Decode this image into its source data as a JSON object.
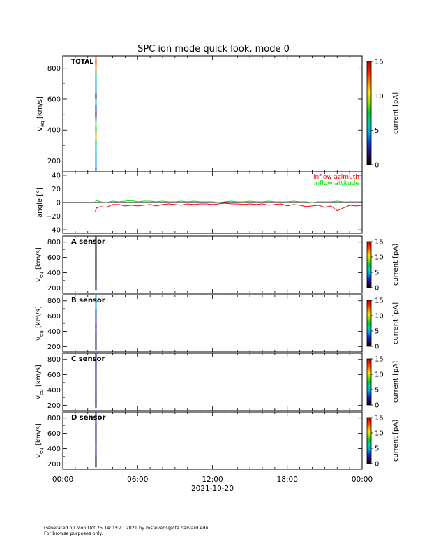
{
  "title": "SPC ion mode quick look, mode 0",
  "footer": {
    "line1": "Generated on Mon Oct 25 14:03:21 2021 by mstevens@cfa.harvard.edu",
    "line2": "For browse purposes only."
  },
  "x_axis": {
    "tick_labels": [
      "00:00",
      "06:00",
      "12:00",
      "18:00",
      "00:00"
    ],
    "tick_hours": [
      0,
      6,
      12,
      18,
      24
    ],
    "date_label": "2021-10-20",
    "range_hours": [
      0,
      24
    ]
  },
  "colorbar": {
    "label": "current [pA]",
    "range": [
      0,
      15
    ],
    "tick_values": [
      0,
      5,
      10,
      15
    ],
    "tick_labels": [
      "0",
      "5",
      "10",
      "15"
    ],
    "colors": [
      "#000000",
      "#2a0a5c",
      "#1030c8",
      "#00a0e0",
      "#00d0a0",
      "#00c840",
      "#90e000",
      "#ffe000",
      "#ff8000",
      "#ff2000",
      "#c00000"
    ]
  },
  "chart_data": [
    {
      "type": "heatmap",
      "panel": "total",
      "label": "TOTAL",
      "ylabel": "v",
      "ylabel_sub": "eq",
      "ylabel_unit": " [km/s]",
      "ylim": [
        130,
        880
      ],
      "yticks": [
        200,
        400,
        600,
        800
      ],
      "ytick_labels": [
        "200",
        "400",
        "600",
        "800"
      ],
      "data_hours": [
        2.6,
        2.7
      ],
      "profile": [
        {
          "v": 870,
          "c": 12
        },
        {
          "v": 840,
          "c": 13
        },
        {
          "v": 800,
          "c": 12
        },
        {
          "v": 770,
          "c": 6
        },
        {
          "v": 740,
          "c": 7
        },
        {
          "v": 700,
          "c": 4
        },
        {
          "v": 660,
          "c": 5
        },
        {
          "v": 620,
          "c": 2
        },
        {
          "v": 580,
          "c": 6
        },
        {
          "v": 540,
          "c": 3
        },
        {
          "v": 500,
          "c": 1.5
        },
        {
          "v": 470,
          "c": 4
        },
        {
          "v": 440,
          "c": 9
        },
        {
          "v": 410,
          "c": 8
        },
        {
          "v": 380,
          "c": 12
        },
        {
          "v": 350,
          "c": 9
        },
        {
          "v": 320,
          "c": 7
        },
        {
          "v": 290,
          "c": 6
        },
        {
          "v": 260,
          "c": 5
        },
        {
          "v": 230,
          "c": 5
        },
        {
          "v": 200,
          "c": 5
        },
        {
          "v": 170,
          "c": 4
        },
        {
          "v": 150,
          "c": 3
        }
      ]
    },
    {
      "type": "line",
      "panel": "angle",
      "ylabel": "angle [°]",
      "ylim": [
        -45,
        45
      ],
      "yticks": [
        -40,
        -20,
        0,
        20,
        40
      ],
      "ytick_labels": [
        "−40",
        "−20",
        "0",
        "20",
        "40"
      ],
      "zero_line": true,
      "x_hours": [
        2.6,
        2.7,
        3.0,
        3.5,
        4.0,
        4.5,
        5.0,
        5.5,
        6.0,
        6.5,
        7.0,
        7.5,
        8.0,
        8.5,
        9.0,
        9.5,
        10.0,
        10.5,
        11.0,
        11.5,
        12.0,
        12.5,
        13.0,
        13.5,
        14.0,
        14.5,
        15.0,
        15.5,
        16.0,
        16.5,
        17.0,
        17.5,
        18.0,
        18.5,
        19.0,
        19.5,
        20.0,
        20.5,
        21.0,
        21.5,
        22.0,
        22.5,
        23.0,
        23.5,
        24.0
      ],
      "series": [
        {
          "name": "inflow azimuth",
          "color": "#ff0000",
          "values": [
            -13,
            -8,
            -6,
            -7,
            -3,
            -3,
            -5,
            -4,
            -5,
            -4,
            -3,
            -5,
            -3,
            -2,
            -3,
            -4,
            -2,
            -3,
            -2,
            -2,
            -3,
            -2,
            -1,
            -2,
            -2,
            -3,
            -2,
            -3,
            -2,
            -4,
            -3,
            -2,
            -5,
            -3,
            -4,
            -6,
            -5,
            -4,
            -7,
            -5,
            -12,
            -8,
            -4,
            -5,
            -4
          ]
        },
        {
          "name": "inflow attitude",
          "color": "#00dd00",
          "values": [
            1,
            3,
            1,
            0,
            2,
            1,
            2,
            3,
            1,
            2,
            2,
            1,
            2,
            1,
            1,
            2,
            1,
            2,
            1,
            1,
            1,
            0,
            1,
            2,
            1,
            1,
            2,
            1,
            1,
            2,
            1,
            1,
            1,
            2,
            1,
            1,
            0,
            1,
            1,
            1,
            2,
            1,
            1,
            1,
            1
          ]
        }
      ]
    },
    {
      "type": "heatmap",
      "panel": "a",
      "label": "A sensor",
      "ylabel": "v",
      "ylabel_sub": "eq",
      "ylabel_unit": " [km/s]",
      "ylim": [
        130,
        880
      ],
      "yticks": [
        200,
        400,
        600,
        800
      ],
      "ytick_labels": [
        "200",
        "400",
        "600",
        "800"
      ],
      "data_hours": [
        2.6,
        2.7
      ],
      "profile": [
        {
          "v": 860,
          "c": 0.5
        },
        {
          "v": 800,
          "c": 0.3
        },
        {
          "v": 740,
          "c": 0.4
        },
        {
          "v": 680,
          "c": 0.3
        },
        {
          "v": 620,
          "c": 0.3
        },
        {
          "v": 560,
          "c": 0.4
        },
        {
          "v": 500,
          "c": 0.3
        },
        {
          "v": 440,
          "c": 0.3
        },
        {
          "v": 380,
          "c": 0.4
        },
        {
          "v": 320,
          "c": 0.5
        },
        {
          "v": 260,
          "c": 0.8
        },
        {
          "v": 220,
          "c": 1.5
        },
        {
          "v": 180,
          "c": 2
        }
      ]
    },
    {
      "type": "heatmap",
      "panel": "b",
      "label": "B sensor",
      "ylabel": "v",
      "ylabel_sub": "eq",
      "ylabel_unit": " [km/s]",
      "ylim": [
        130,
        880
      ],
      "yticks": [
        200,
        400,
        600,
        800
      ],
      "ytick_labels": [
        "200",
        "400",
        "600",
        "800"
      ],
      "data_hours": [
        2.6,
        2.7
      ],
      "profile": [
        {
          "v": 860,
          "c": 5
        },
        {
          "v": 810,
          "c": 4
        },
        {
          "v": 760,
          "c": 5
        },
        {
          "v": 710,
          "c": 4
        },
        {
          "v": 660,
          "c": 3
        },
        {
          "v": 610,
          "c": 3.5
        },
        {
          "v": 560,
          "c": 2.5
        },
        {
          "v": 510,
          "c": 3
        },
        {
          "v": 460,
          "c": 2
        },
        {
          "v": 410,
          "c": 3
        },
        {
          "v": 360,
          "c": 2
        },
        {
          "v": 310,
          "c": 1.5
        },
        {
          "v": 260,
          "c": 1
        },
        {
          "v": 210,
          "c": 1.5
        },
        {
          "v": 170,
          "c": 1
        }
      ]
    },
    {
      "type": "heatmap",
      "panel": "c",
      "label": "C sensor",
      "ylabel": "v",
      "ylabel_sub": "eq",
      "ylabel_unit": " [km/s]",
      "ylim": [
        130,
        880
      ],
      "yticks": [
        200,
        400,
        600,
        800
      ],
      "ytick_labels": [
        "200",
        "400",
        "600",
        "800"
      ],
      "data_hours": [
        2.6,
        2.7
      ],
      "profile": [
        {
          "v": 860,
          "c": 2
        },
        {
          "v": 810,
          "c": 2.5
        },
        {
          "v": 760,
          "c": 1.5
        },
        {
          "v": 710,
          "c": 2
        },
        {
          "v": 660,
          "c": 1.5
        },
        {
          "v": 610,
          "c": 2
        },
        {
          "v": 560,
          "c": 1.5
        },
        {
          "v": 510,
          "c": 1
        },
        {
          "v": 460,
          "c": 1.5
        },
        {
          "v": 410,
          "c": 1
        },
        {
          "v": 360,
          "c": 1
        },
        {
          "v": 310,
          "c": 0.8
        },
        {
          "v": 260,
          "c": 0.7
        },
        {
          "v": 210,
          "c": 1
        },
        {
          "v": 170,
          "c": 0.8
        }
      ]
    },
    {
      "type": "heatmap",
      "panel": "d",
      "label": "D sensor",
      "ylabel": "v",
      "ylabel_sub": "eq",
      "ylabel_unit": " [km/s]",
      "ylim": [
        130,
        880
      ],
      "yticks": [
        200,
        400,
        600,
        800
      ],
      "ytick_labels": [
        "200",
        "400",
        "600",
        "800"
      ],
      "data_hours": [
        2.6,
        2.7
      ],
      "profile": [
        {
          "v": 860,
          "c": 3
        },
        {
          "v": 810,
          "c": 2
        },
        {
          "v": 760,
          "c": 2.5
        },
        {
          "v": 710,
          "c": 1.5
        },
        {
          "v": 660,
          "c": 2
        },
        {
          "v": 610,
          "c": 1.5
        },
        {
          "v": 560,
          "c": 2
        },
        {
          "v": 510,
          "c": 1
        },
        {
          "v": 460,
          "c": 1.5
        },
        {
          "v": 410,
          "c": 2.5
        },
        {
          "v": 360,
          "c": 1
        },
        {
          "v": 310,
          "c": 0.8
        },
        {
          "v": 260,
          "c": 0.6
        },
        {
          "v": 210,
          "c": 0.5
        },
        {
          "v": 170,
          "c": 0.5
        }
      ]
    }
  ]
}
